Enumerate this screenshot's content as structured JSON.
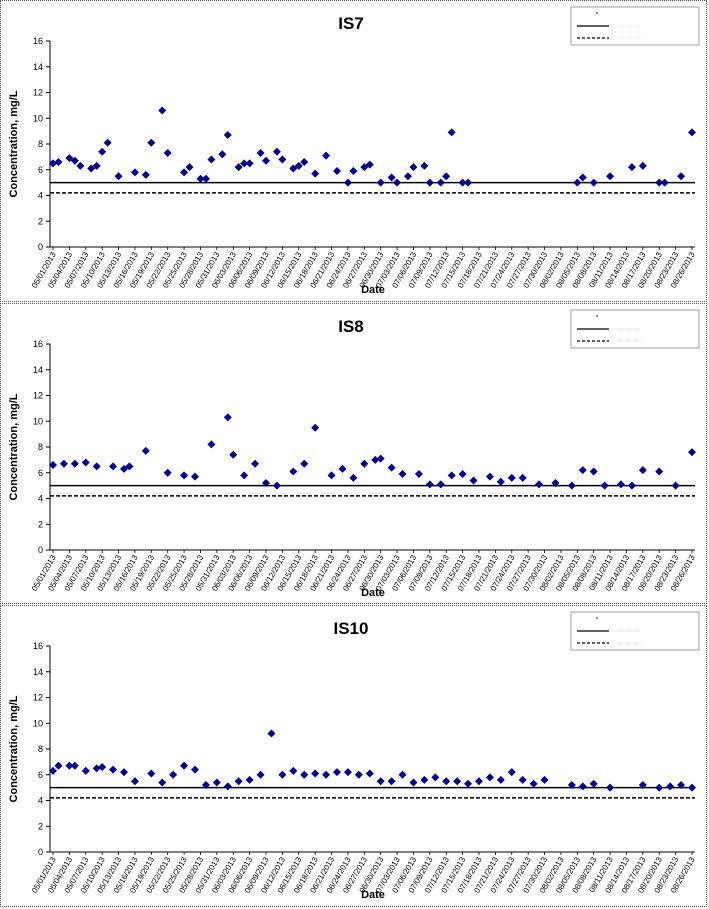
{
  "chart_data": [
    {
      "type": "scatter",
      "title": "IS7",
      "xlabel": "Date",
      "ylabel": "Concentration, mg/L",
      "ylim": [
        0,
        16
      ],
      "yticks": [
        0,
        2,
        4,
        6,
        8,
        10,
        12,
        14,
        16
      ],
      "x_tick_labels": [
        "05/01/2013",
        "05/04/2013",
        "05/07/2013",
        "05/10/2013",
        "05/13/2013",
        "05/16/2013",
        "05/19/2013",
        "05/22/2013",
        "05/25/2013",
        "05/28/2013",
        "05/31/2013",
        "06/03/2013",
        "06/06/2013",
        "06/09/2013",
        "06/12/2013",
        "06/15/2013",
        "06/18/2013",
        "06/21/2013",
        "06/24/2013",
        "06/27/2013",
        "06/30/2013",
        "07/03/2013",
        "07/06/2013",
        "07/09/2013",
        "07/12/2013",
        "07/15/2013",
        "07/18/2013",
        "07/21/2013",
        "07/24/2013",
        "07/27/2013",
        "07/30/2013",
        "08/02/2013",
        "08/05/2013",
        "08/08/2013",
        "08/11/2013",
        "08/14/2013",
        "08/17/2013",
        "08/20/2013",
        "08/23/2013",
        "08/26/2013"
      ],
      "legend_position": "top-right",
      "reference_lines": [
        {
          "value": 5.0,
          "style": "solid"
        },
        {
          "value": 4.2,
          "style": "dashed"
        }
      ],
      "marker_color": "#00008B",
      "series": [
        {
          "x": [
            "05/01/2013",
            "05/02/2013",
            "05/04/2013",
            "05/05/2013",
            "05/06/2013",
            "05/08/2013",
            "05/09/2013",
            "05/10/2013",
            "05/11/2013",
            "05/13/2013",
            "05/16/2013",
            "05/18/2013",
            "05/19/2013",
            "05/21/2013",
            "05/22/2013",
            "05/25/2013",
            "05/26/2013",
            "05/28/2013",
            "05/29/2013",
            "05/30/2013",
            "06/01/2013",
            "06/02/2013",
            "06/04/2013",
            "06/05/2013",
            "06/06/2013",
            "06/08/2013",
            "06/09/2013",
            "06/11/2013",
            "06/12/2013",
            "06/14/2013",
            "06/15/2013",
            "06/16/2013",
            "06/18/2013",
            "06/20/2013",
            "06/22/2013",
            "06/24/2013",
            "06/25/2013",
            "06/27/2013",
            "06/28/2013",
            "06/30/2013",
            "07/02/2013",
            "07/03/2013",
            "07/05/2013",
            "07/06/2013",
            "07/08/2013",
            "07/09/2013",
            "07/11/2013",
            "07/12/2013",
            "07/13/2013",
            "07/15/2013",
            "07/16/2013",
            "08/05/2013",
            "08/06/2013",
            "08/08/2013",
            "08/11/2013",
            "08/15/2013",
            "08/17/2013",
            "08/20/2013",
            "08/21/2013",
            "08/24/2013",
            "08/26/2013"
          ],
          "y": [
            6.5,
            6.6,
            6.9,
            6.7,
            6.3,
            6.1,
            6.3,
            7.4,
            8.1,
            5.5,
            5.8,
            5.6,
            8.1,
            10.6,
            7.3,
            5.8,
            6.2,
            5.3,
            5.3,
            6.8,
            7.2,
            8.7,
            6.2,
            6.5,
            6.5,
            7.3,
            6.7,
            7.4,
            6.8,
            6.1,
            6.3,
            6.6,
            5.7,
            7.1,
            5.9,
            5.0,
            5.9,
            6.2,
            6.4,
            5.0,
            5.4,
            5.0,
            5.5,
            6.2,
            6.3,
            5.0,
            5.0,
            5.5,
            8.9,
            5.0,
            5.0,
            5.0,
            5.4,
            5.0,
            5.5,
            6.2,
            6.3,
            5.0,
            5.0,
            5.5,
            8.9
          ]
        }
      ]
    },
    {
      "type": "scatter",
      "title": "IS8",
      "xlabel": "Date",
      "ylabel": "Concentration, mg/L",
      "ylim": [
        0,
        16
      ],
      "yticks": [
        0,
        2,
        4,
        6,
        8,
        10,
        12,
        14,
        16
      ],
      "x_tick_labels": [
        "05/01/2013",
        "05/04/2013",
        "05/07/2013",
        "05/10/2013",
        "05/13/2013",
        "05/16/2013",
        "05/19/2013",
        "05/22/2013",
        "05/25/2013",
        "05/28/2013",
        "05/31/2013",
        "06/03/2013",
        "06/06/2013",
        "06/09/2013",
        "06/12/2013",
        "06/15/2013",
        "06/18/2013",
        "06/21/2013",
        "06/24/2013",
        "06/27/2013",
        "06/30/2013",
        "07/03/2013",
        "07/06/2013",
        "07/09/2013",
        "07/12/2013",
        "07/15/2013",
        "07/18/2013",
        "07/21/2013",
        "07/24/2013",
        "07/27/2013",
        "07/30/2013",
        "08/02/2013",
        "08/05/2013",
        "08/08/2013",
        "08/11/2013",
        "08/14/2013",
        "08/17/2013",
        "08/20/2013",
        "08/23/2013",
        "08/26/2013"
      ],
      "legend_position": "top-right",
      "reference_lines": [
        {
          "value": 5.0,
          "style": "solid"
        },
        {
          "value": 4.2,
          "style": "dashed"
        }
      ],
      "marker_color": "#00008B",
      "series": [
        {
          "x": [
            "05/01/2013",
            "05/03/2013",
            "05/05/2013",
            "05/07/2013",
            "05/09/2013",
            "05/12/2013",
            "05/14/2013",
            "05/15/2013",
            "05/18/2013",
            "05/22/2013",
            "05/25/2013",
            "05/27/2013",
            "05/30/2013",
            "06/02/2013",
            "06/03/2013",
            "06/05/2013",
            "06/07/2013",
            "06/09/2013",
            "06/11/2013",
            "06/14/2013",
            "06/16/2013",
            "06/18/2013",
            "06/21/2013",
            "06/23/2013",
            "06/25/2013",
            "06/27/2013",
            "06/29/2013",
            "06/30/2013",
            "07/02/2013",
            "07/04/2013",
            "07/07/2013",
            "07/09/2013",
            "07/11/2013",
            "07/13/2013",
            "07/15/2013",
            "07/17/2013",
            "07/20/2013",
            "07/22/2013",
            "07/24/2013",
            "07/26/2013",
            "07/29/2013",
            "08/01/2013",
            "08/04/2013",
            "08/06/2013",
            "08/08/2013",
            "08/10/2013",
            "08/13/2013",
            "08/15/2013",
            "08/17/2013",
            "08/20/2013",
            "08/23/2013",
            "08/26/2013"
          ],
          "y": [
            6.6,
            6.7,
            6.7,
            6.8,
            6.5,
            6.5,
            6.3,
            6.5,
            7.7,
            6.0,
            5.8,
            5.7,
            8.2,
            10.3,
            7.4,
            5.8,
            6.7,
            5.2,
            5.0,
            6.1,
            6.7,
            9.5,
            5.8,
            6.3,
            5.6,
            6.7,
            7.0,
            7.1,
            6.4,
            5.9,
            5.9,
            5.1,
            5.1,
            5.8,
            5.9,
            5.4,
            5.7,
            5.3,
            5.6,
            5.6,
            5.1,
            5.2,
            5.0,
            6.2,
            6.1,
            5.0,
            5.1,
            5.0,
            6.2,
            6.1,
            5.0,
            7.6
          ]
        }
      ]
    },
    {
      "type": "scatter",
      "title": "IS10",
      "xlabel": "Date",
      "ylabel": "Concentration, mg/L",
      "ylim": [
        0,
        16
      ],
      "yticks": [
        0,
        2,
        4,
        6,
        8,
        10,
        12,
        14,
        16
      ],
      "x_tick_labels": [
        "05/01/2013",
        "05/04/2013",
        "05/07/2013",
        "05/10/2013",
        "05/13/2013",
        "05/16/2013",
        "05/19/2013",
        "05/22/2013",
        "05/25/2013",
        "05/28/2013",
        "05/31/2013",
        "06/03/2013",
        "06/06/2013",
        "06/09/2013",
        "06/12/2013",
        "06/15/2013",
        "06/18/2013",
        "06/21/2013",
        "06/24/2013",
        "06/27/2013",
        "06/30/2013",
        "07/03/2013",
        "07/06/2013",
        "07/09/2013",
        "07/12/2013",
        "07/15/2013",
        "07/18/2013",
        "07/21/2013",
        "07/24/2013",
        "07/27/2013",
        "07/30/2013",
        "08/02/2013",
        "08/05/2013",
        "08/08/2013",
        "08/11/2013",
        "08/14/2013",
        "08/17/2013",
        "08/20/2013",
        "08/23/2013",
        "08/26/2013"
      ],
      "legend_position": "top-right",
      "reference_lines": [
        {
          "value": 5.0,
          "style": "solid"
        },
        {
          "value": 4.2,
          "style": "dashed"
        }
      ],
      "marker_color": "#00008B",
      "series": [
        {
          "x": [
            "05/01/2013",
            "05/02/2013",
            "05/04/2013",
            "05/05/2013",
            "05/07/2013",
            "05/09/2013",
            "05/10/2013",
            "05/12/2013",
            "05/14/2013",
            "05/16/2013",
            "05/19/2013",
            "05/21/2013",
            "05/23/2013",
            "05/25/2013",
            "05/27/2013",
            "05/29/2013",
            "05/31/2013",
            "06/02/2013",
            "06/04/2013",
            "06/06/2013",
            "06/08/2013",
            "06/10/2013",
            "06/12/2013",
            "06/14/2013",
            "06/16/2013",
            "06/18/2013",
            "06/20/2013",
            "06/22/2013",
            "06/24/2013",
            "06/26/2013",
            "06/28/2013",
            "06/30/2013",
            "07/02/2013",
            "07/04/2013",
            "07/06/2013",
            "07/08/2013",
            "07/10/2013",
            "07/12/2013",
            "07/14/2013",
            "07/16/2013",
            "07/18/2013",
            "07/20/2013",
            "07/22/2013",
            "07/24/2013",
            "07/26/2013",
            "07/28/2013",
            "07/30/2013",
            "08/04/2013",
            "08/06/2013",
            "08/08/2013",
            "08/11/2013",
            "08/17/2013",
            "08/20/2013",
            "08/22/2013",
            "08/24/2013",
            "08/26/2013"
          ],
          "y": [
            6.3,
            6.7,
            6.7,
            6.7,
            6.3,
            6.5,
            6.6,
            6.4,
            6.2,
            5.5,
            6.1,
            5.4,
            6.0,
            6.7,
            6.4,
            5.2,
            5.4,
            5.1,
            5.5,
            5.6,
            6.0,
            9.2,
            6.0,
            6.3,
            6.0,
            6.1,
            6.0,
            6.2,
            6.2,
            6.0,
            6.1,
            5.5,
            5.5,
            6.0,
            5.4,
            5.6,
            5.8,
            5.5,
            5.5,
            5.3,
            5.5,
            5.8,
            5.6,
            6.2,
            5.6,
            5.3,
            5.6,
            5.2,
            5.1,
            5.3,
            5.0,
            5.2,
            5.0,
            5.1,
            5.2,
            5.0
          ]
        }
      ]
    }
  ]
}
